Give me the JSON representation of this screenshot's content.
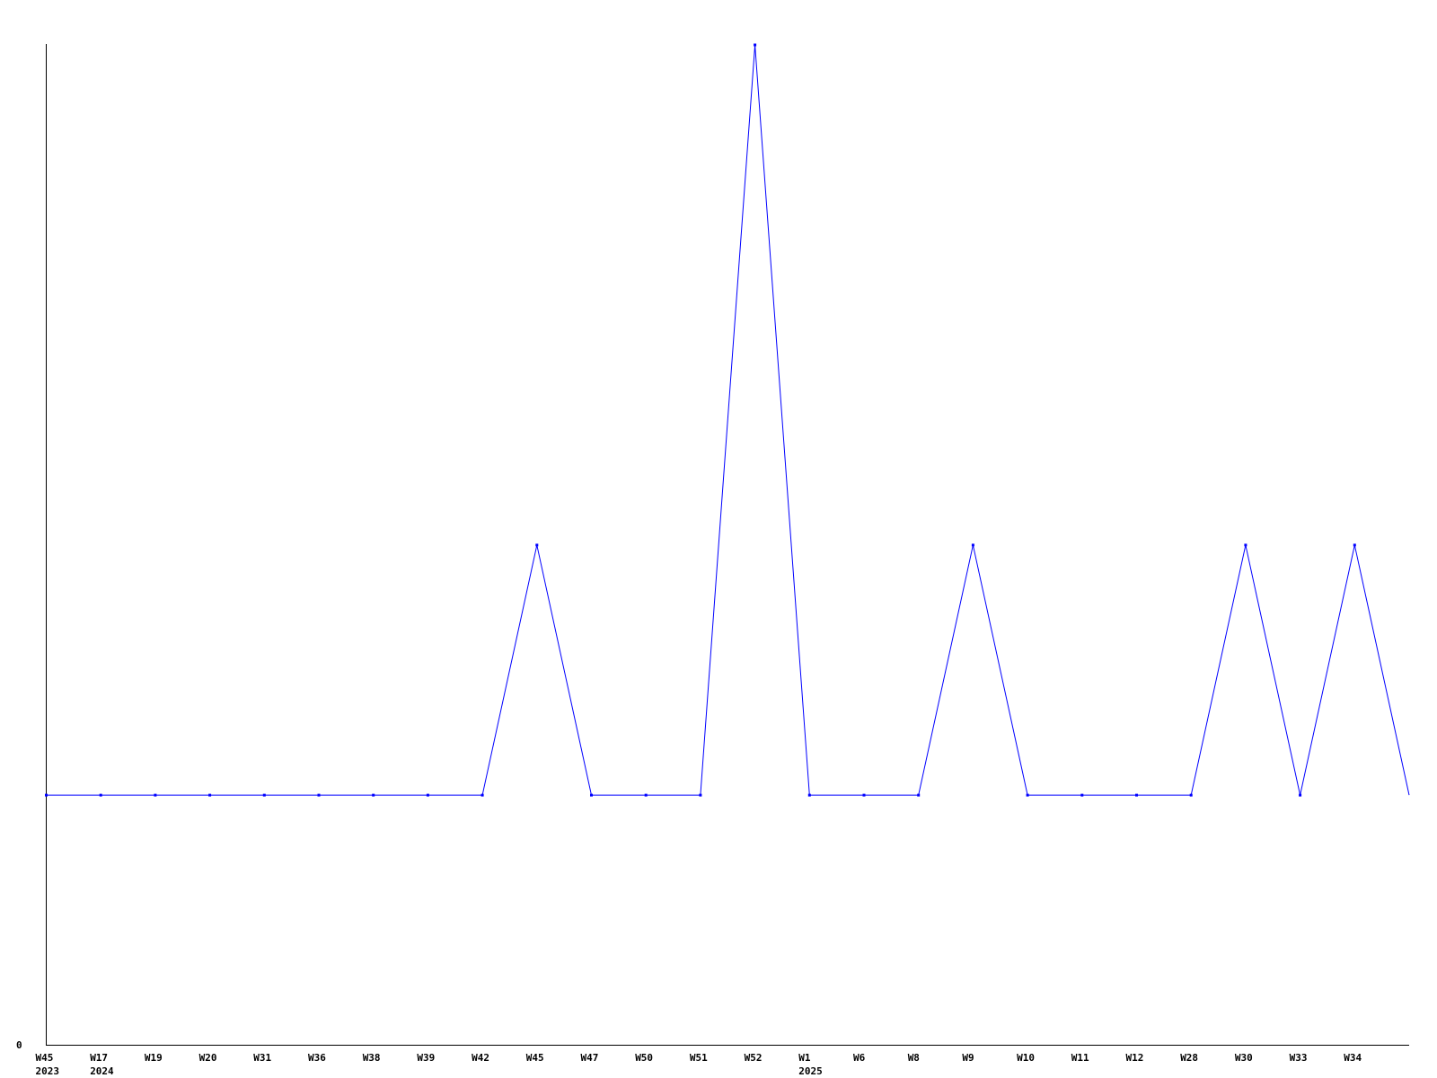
{
  "chart_data": {
    "type": "line",
    "title": "",
    "xlabel": "",
    "ylabel": "",
    "categories": [
      "W45",
      "W17",
      "W19",
      "W20",
      "W31",
      "W36",
      "W38",
      "W39",
      "W42",
      "W45",
      "W47",
      "W50",
      "W51",
      "W52",
      "W1",
      "W6",
      "W8",
      "W9",
      "W10",
      "W11",
      "W12",
      "W28",
      "W30",
      "W33",
      "W34",
      ""
    ],
    "year_labels": [
      {
        "index": 0,
        "label": "2023"
      },
      {
        "index": 1,
        "label": "2024"
      },
      {
        "index": 14,
        "label": "2025"
      }
    ],
    "values": [
      1,
      1,
      1,
      1,
      1,
      1,
      1,
      1,
      1,
      2,
      1,
      1,
      1,
      4,
      1,
      1,
      1,
      2,
      1,
      1,
      1,
      1,
      2,
      1,
      2,
      1
    ],
    "ylim": [
      0,
      4
    ],
    "y_tick_labels": [
      "0"
    ],
    "grid": false,
    "legend": "none",
    "colors": {
      "line": "#0000ff",
      "axis": "#000000"
    }
  }
}
